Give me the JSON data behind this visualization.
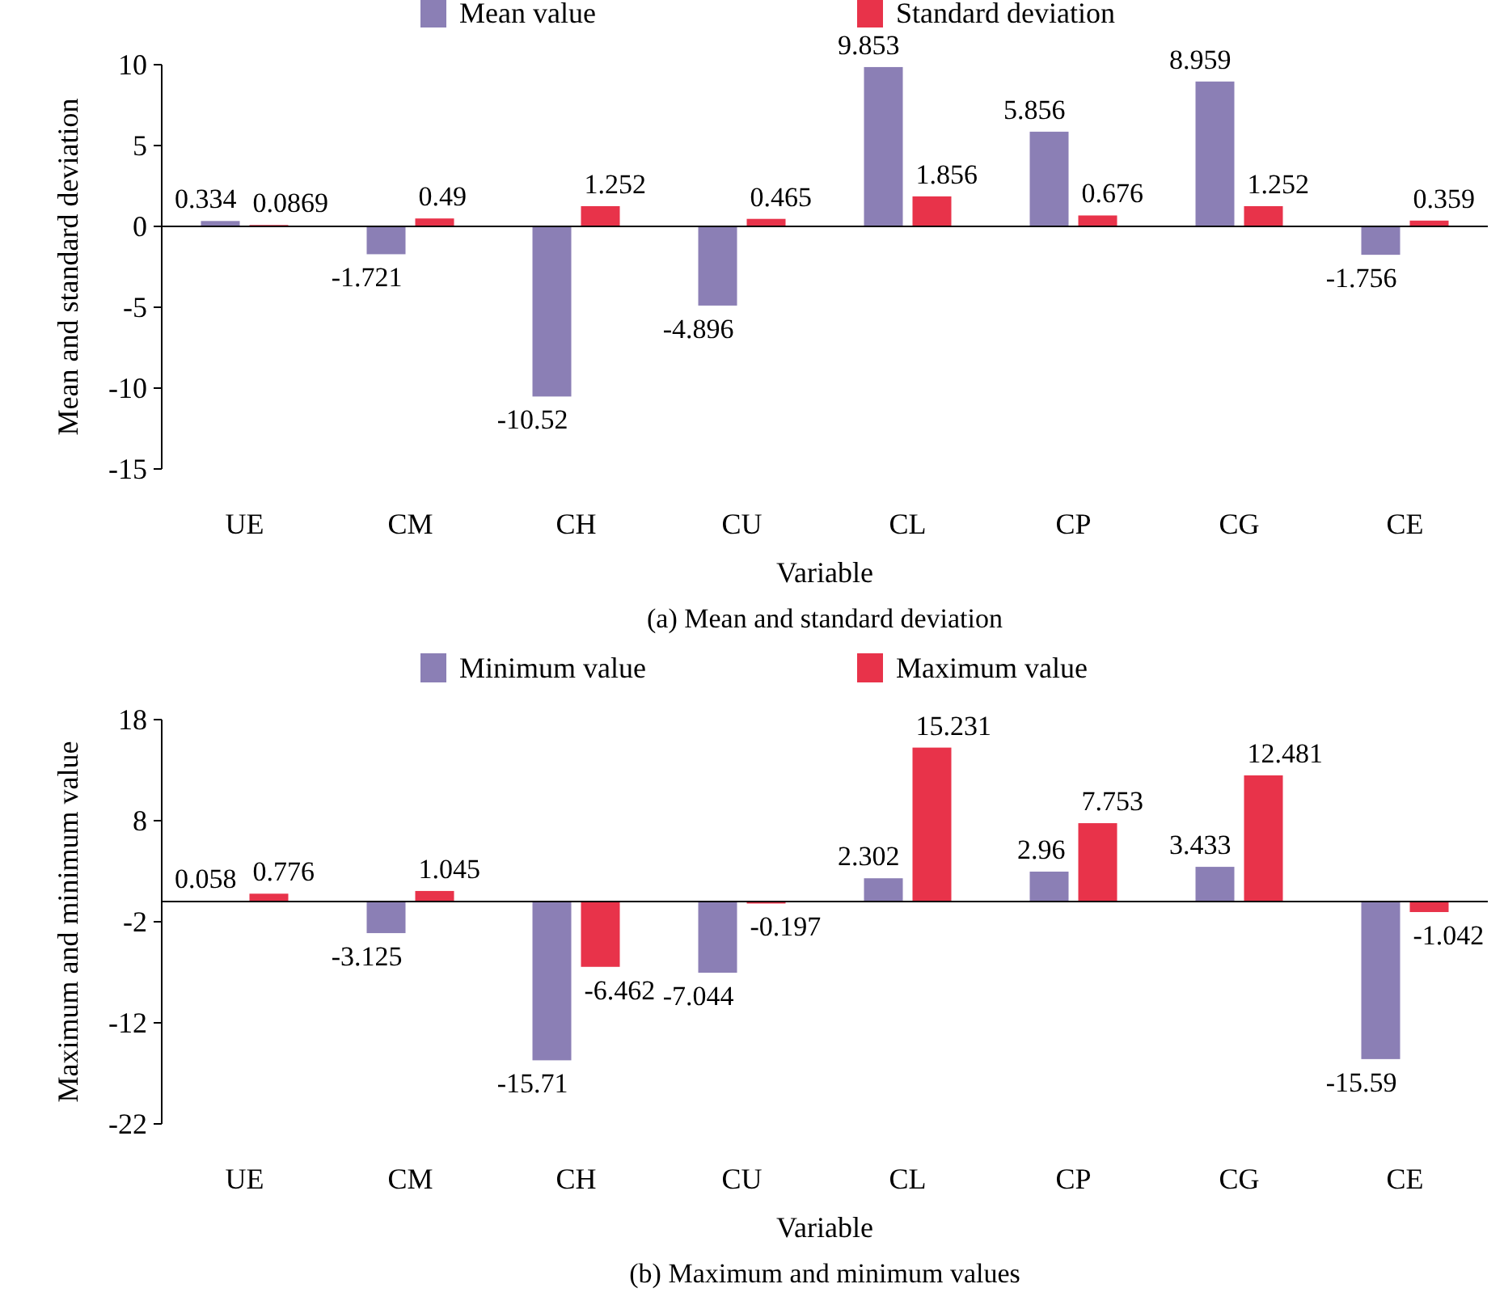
{
  "chart_data": [
    {
      "type": "bar",
      "title": "(a) Mean and standard deviation",
      "xlabel": "Variable",
      "ylabel": "Mean and standard deviation",
      "categories": [
        "UE",
        "CM",
        "CH",
        "CU",
        "CL",
        "CP",
        "CG",
        "CE"
      ],
      "series": [
        {
          "name": "Mean value",
          "color": "#8b7fb5",
          "values": [
            0.334,
            -1.721,
            -10.52,
            -4.896,
            9.853,
            5.856,
            8.959,
            -1.756
          ]
        },
        {
          "name": "Standard deviation",
          "color": "#e8334a",
          "values": [
            0.0869,
            0.49,
            1.252,
            0.465,
            1.856,
            0.676,
            1.252,
            0.359
          ]
        }
      ],
      "ylim": [
        -15,
        10
      ],
      "yticks": [
        -15,
        -10,
        -5,
        0,
        5,
        10
      ],
      "data_labels": true,
      "legend": "top"
    },
    {
      "type": "bar",
      "title": "(b) Maximum and minimum values",
      "xlabel": "Variable",
      "ylabel": "Maximum and minimum value",
      "categories": [
        "UE",
        "CM",
        "CH",
        "CU",
        "CL",
        "CP",
        "CG",
        "CE"
      ],
      "series": [
        {
          "name": "Minimum value",
          "color": "#8b7fb5",
          "values": [
            0.058,
            -3.125,
            -15.71,
            -7.044,
            2.302,
            2.96,
            3.433,
            -15.59
          ]
        },
        {
          "name": "Maximum value",
          "color": "#e8334a",
          "values": [
            0.776,
            1.045,
            -6.462,
            -0.197,
            15.231,
            7.753,
            12.481,
            -1.042
          ]
        }
      ],
      "ylim": [
        -22,
        18
      ],
      "yticks": [
        -22,
        -12,
        -2,
        8,
        18
      ],
      "data_labels": true,
      "legend": "top"
    }
  ]
}
